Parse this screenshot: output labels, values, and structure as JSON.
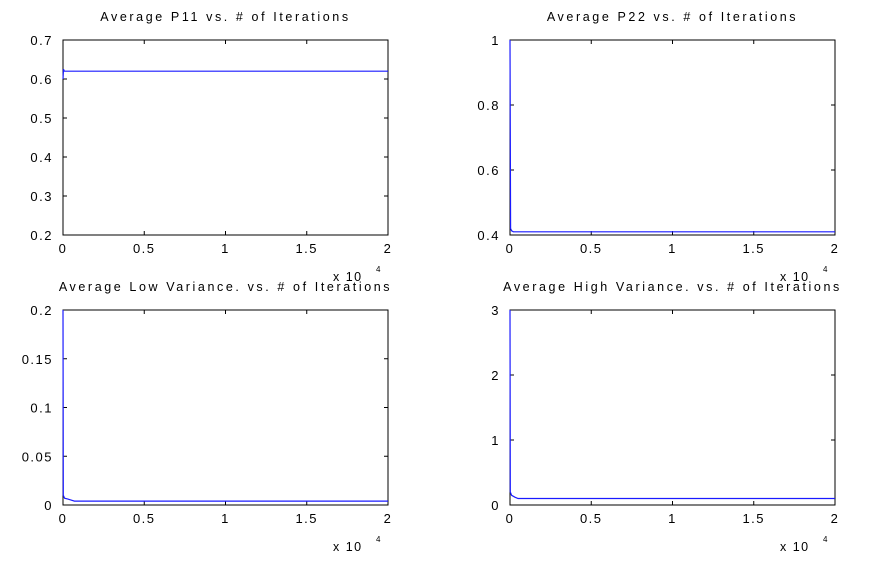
{
  "chart_data": [
    {
      "type": "line",
      "title": "Average P11 vs. # of Iterations",
      "xlim": [
        0,
        20000
      ],
      "ylim": [
        0.2,
        0.7
      ],
      "xticks": [
        0,
        0.5,
        1,
        1.5,
        2
      ],
      "xtick_labels": [
        "0",
        "0.5",
        "1",
        "1.5",
        "2"
      ],
      "x_multiplier": "x 10",
      "x_multiplier_exp": "4",
      "yticks": [
        0.2,
        0.3,
        0.4,
        0.5,
        0.6,
        0.7
      ],
      "ytick_labels": [
        "0.2",
        "0.3",
        "0.4",
        "0.5",
        "0.6",
        "0.7"
      ],
      "series": [
        {
          "color": "#1a1aff",
          "x": [
            0,
            30,
            80,
            150,
            300,
            20000
          ],
          "y": [
            0.6,
            0.625,
            0.62,
            0.62,
            0.62,
            0.62
          ]
        }
      ]
    },
    {
      "type": "line",
      "title": "Average P22 vs. # of Iterations",
      "xlim": [
        0,
        20000
      ],
      "ylim": [
        0.4,
        1
      ],
      "xticks": [
        0,
        0.5,
        1,
        1.5,
        2
      ],
      "xtick_labels": [
        "0",
        "0.5",
        "1",
        "1.5",
        "2"
      ],
      "x_multiplier": "x 10",
      "x_multiplier_exp": "4",
      "yticks": [
        0.4,
        0.6,
        0.8,
        1
      ],
      "ytick_labels": [
        "0.4",
        "0.6",
        "0.8",
        "1"
      ],
      "series": [
        {
          "color": "#1a1aff",
          "x": [
            0,
            40,
            100,
            200,
            400,
            20000
          ],
          "y": [
            1,
            0.42,
            0.413,
            0.41,
            0.41,
            0.41
          ]
        }
      ]
    },
    {
      "type": "line",
      "title": "Average Low Variance. vs. # of Iterations",
      "xlim": [
        0,
        20000
      ],
      "ylim": [
        0,
        0.2
      ],
      "xticks": [
        0,
        0.5,
        1,
        1.5,
        2
      ],
      "xtick_labels": [
        "0",
        "0.5",
        "1",
        "1.5",
        "2"
      ],
      "x_multiplier": "x 10",
      "x_multiplier_exp": "4",
      "yticks": [
        0,
        0.05,
        0.1,
        0.15,
        0.2
      ],
      "ytick_labels": [
        "0",
        "0.05",
        "0.1",
        "0.15",
        "0.2"
      ],
      "series": [
        {
          "color": "#1a1aff",
          "x": [
            0,
            20,
            100,
            300,
            500,
            700,
            20000
          ],
          "y": [
            0.2,
            0.01,
            0.007,
            0.006,
            0.005,
            0.004,
            0.004
          ]
        }
      ]
    },
    {
      "type": "line",
      "title": "Average High Variance. vs. # of Iterations",
      "xlim": [
        0,
        20000
      ],
      "ylim": [
        0,
        3
      ],
      "xticks": [
        0,
        0.5,
        1,
        1.5,
        2
      ],
      "xtick_labels": [
        "0",
        "0.5",
        "1",
        "1.5",
        "2"
      ],
      "x_multiplier": "x 10",
      "x_multiplier_exp": "4",
      "yticks": [
        0,
        1,
        2,
        3
      ],
      "ytick_labels": [
        "0",
        "1",
        "2",
        "3"
      ],
      "series": [
        {
          "color": "#1a1aff",
          "x": [
            0,
            20,
            100,
            300,
            500,
            700,
            20000
          ],
          "y": [
            3,
            0.2,
            0.15,
            0.12,
            0.1,
            0.1,
            0.1
          ]
        }
      ]
    }
  ]
}
